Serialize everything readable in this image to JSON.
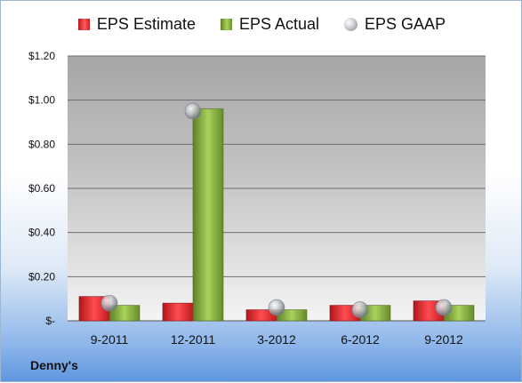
{
  "company": "Denny's",
  "chart_data": {
    "type": "bar",
    "categories": [
      "9-2011",
      "12-2011",
      "3-2012",
      "6-2012",
      "9-2012"
    ],
    "series": [
      {
        "name": "EPS Estimate",
        "kind": "bar",
        "color": "#d42027",
        "values": [
          0.11,
          0.08,
          0.05,
          0.07,
          0.09
        ]
      },
      {
        "name": "EPS Actual",
        "kind": "bar",
        "color": "#8cb548",
        "values": [
          0.07,
          0.96,
          0.05,
          0.07,
          0.07
        ]
      },
      {
        "name": "EPS GAAP",
        "kind": "marker",
        "color": "#b9bcc2",
        "values": [
          0.08,
          0.95,
          0.06,
          0.05,
          0.06
        ]
      }
    ],
    "yticks": [
      "$-",
      "$0.20",
      "$0.40",
      "$0.60",
      "$0.80",
      "$1.00",
      "$1.20"
    ],
    "ylim": [
      0,
      1.2
    ],
    "grid": true,
    "legend_position": "top"
  }
}
